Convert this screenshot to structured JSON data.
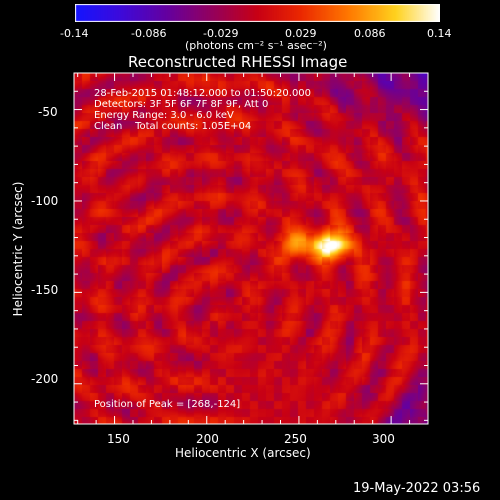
{
  "colorbar": {
    "ticks": [
      "-0.14",
      "-0.086",
      "-0.029",
      "0.029",
      "0.086",
      "0.14"
    ],
    "units": "(photons cm⁻² s⁻¹ asec⁻²)",
    "min": -0.14,
    "max": 0.14
  },
  "chart_data": {
    "type": "heatmap",
    "title": "Reconstructed RHESSI Image",
    "xlabel": "Heliocentric X (arcsec)",
    "ylabel": "Heliocentric Y (arcsec)",
    "xlim": [
      128,
      320
    ],
    "ylim": [
      -222,
      -30
    ],
    "x_ticks": [
      "150",
      "200",
      "250",
      "300"
    ],
    "y_ticks": [
      "-50",
      "-100",
      "-150",
      "-200"
    ],
    "x_tick_values": [
      150,
      200,
      250,
      300
    ],
    "y_tick_values": [
      -50,
      -100,
      -150,
      -200
    ],
    "peak": {
      "x": 268,
      "y": -124
    },
    "source_lobe": {
      "x": 248,
      "y": -124
    }
  },
  "info": {
    "line1": "28-Feb-2015 01:48:12.000 to 01:50:20.000",
    "line2": "Detectors: 3F 5F 6F 7F 8F 9F, Att 0",
    "line3": "Energy Range: 3.0 - 6.0 keV",
    "line4": "Clean    Total counts: 1.05E+04",
    "peak_label": "Position of Peak = [268,-124]"
  },
  "footer": {
    "timestamp": "19-May-2022 03:56"
  }
}
